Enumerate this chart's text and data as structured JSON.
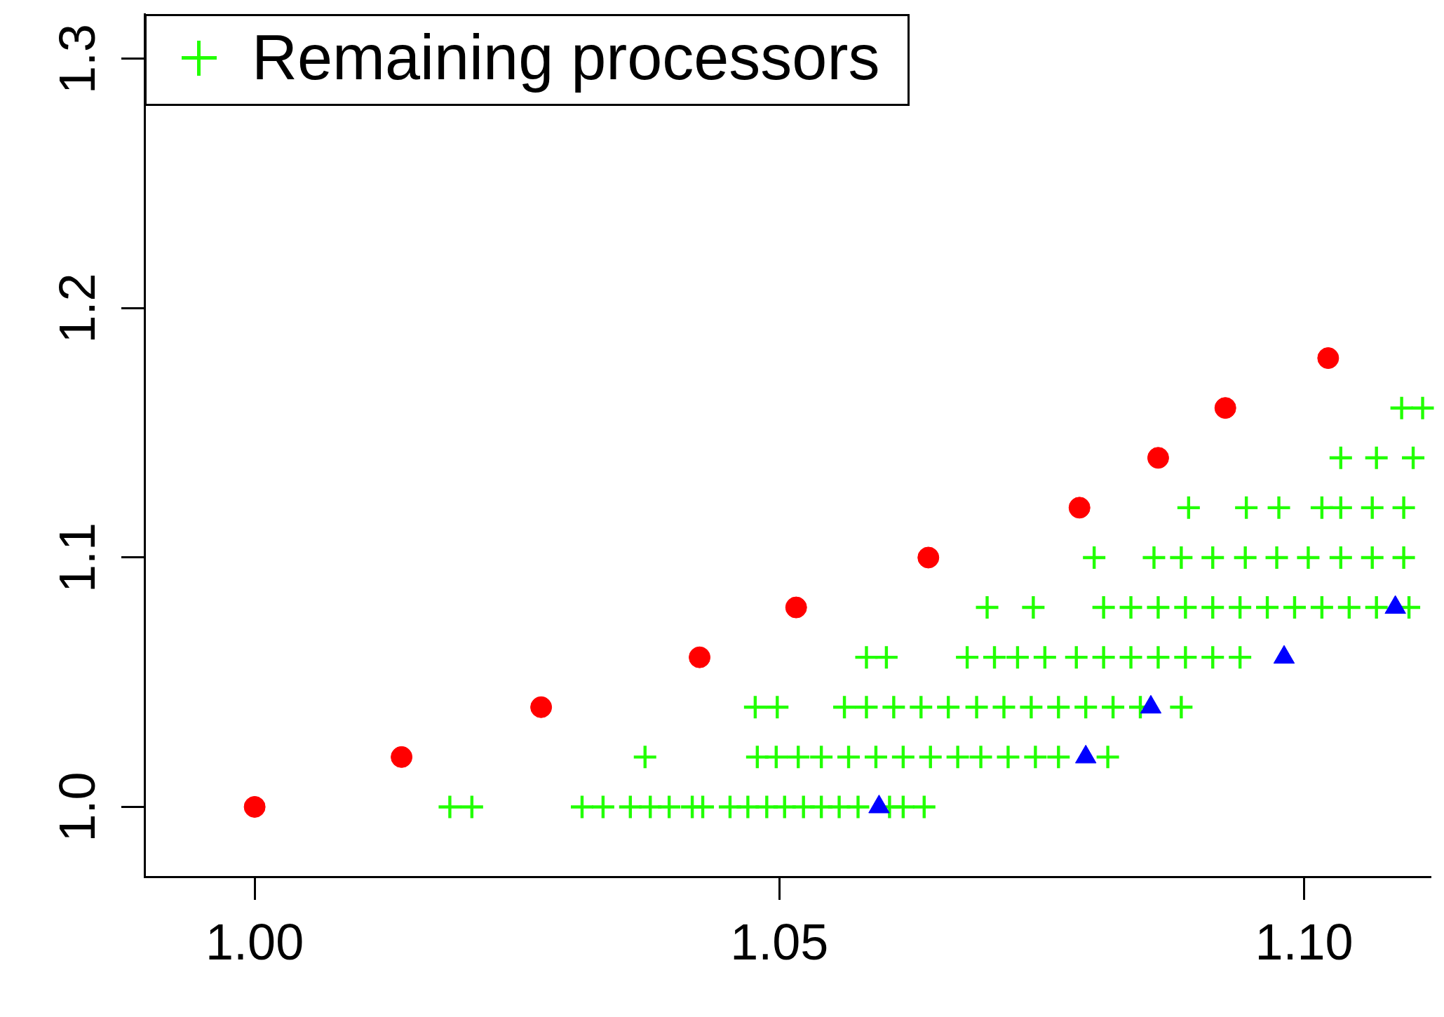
{
  "chart_data": {
    "type": "scatter",
    "xlim": [
      0.9895,
      1.112
    ],
    "ylim": [
      0.972,
      1.318
    ],
    "xticks": [
      {
        "value": 1,
        "label": "1.00"
      },
      1.05,
      {
        "value": 1.1,
        "label": "1.10"
      }
    ],
    "yticks": [
      {
        "value": 1,
        "label": "1.0"
      },
      1.1,
      1.2,
      1.3
    ],
    "legend": "top left",
    "series": [
      {
        "color": "#ff0000",
        "marker": "circle",
        "x": [
          1.0,
          1.014,
          1.0273,
          1.0424,
          1.0516,
          1.0642,
          1.0786,
          1.0861,
          1.0925,
          1.1023
        ],
        "values": [
          1.0,
          1.02,
          1.04,
          1.06,
          1.08,
          1.1,
          1.12,
          1.14,
          1.16,
          1.18
        ]
      },
      {
        "color": "#0000ff",
        "marker": "triangle",
        "x": [
          1.0595,
          1.0792,
          1.0854,
          1.0981,
          1.1087
        ],
        "values": [
          1.0,
          1.02,
          1.04,
          1.06,
          1.08
        ]
      },
      {
        "name": "Remaining processors",
        "color": "#22ff00",
        "marker": "cross",
        "x": [
          1.0186,
          1.0207,
          1.0312,
          1.0332,
          1.0358,
          1.0377,
          1.0395,
          1.0417,
          1.0427,
          1.0453,
          1.047,
          1.0488,
          1.0505,
          1.0523,
          1.054,
          1.0557,
          1.0575,
          1.0605,
          1.0618,
          1.0638,
          1.0372,
          1.0479,
          1.0497,
          1.0518,
          1.054,
          1.0566,
          1.0592,
          1.0618,
          1.0644,
          1.067,
          1.0692,
          1.0718,
          1.0744,
          1.0766,
          1.0813,
          1.0477,
          1.0498,
          1.0562,
          1.0583,
          1.0609,
          1.0635,
          1.0661,
          1.0688,
          1.0714,
          1.074,
          1.0766,
          1.0792,
          1.0818,
          1.0844,
          1.0883,
          1.0583,
          1.0602,
          1.0679,
          1.0705,
          1.0727,
          1.0753,
          1.0783,
          1.0809,
          1.0835,
          1.0861,
          1.0887,
          1.0913,
          1.0939,
          1.0698,
          1.0742,
          1.0809,
          1.0835,
          1.0861,
          1.0887,
          1.0913,
          1.0939,
          1.0965,
          1.0991,
          1.1017,
          1.1043,
          1.1069,
          1.11,
          1.08,
          1.0857,
          1.0883,
          1.0913,
          1.0944,
          1.0974,
          1.1004,
          1.1035,
          1.1065,
          1.1095,
          1.089,
          1.0945,
          1.0976,
          1.1017,
          1.1035,
          1.1065,
          1.1095,
          1.1035,
          1.1069,
          1.1104,
          1.1093,
          1.1113
        ],
        "values": [
          1.0,
          1.0,
          1.0,
          1.0,
          1.0,
          1.0,
          1.0,
          1.0,
          1.0,
          1.0,
          1.0,
          1.0,
          1.0,
          1.0,
          1.0,
          1.0,
          1.0,
          1.0,
          1.0,
          1.0,
          1.02,
          1.02,
          1.02,
          1.02,
          1.02,
          1.02,
          1.02,
          1.02,
          1.02,
          1.02,
          1.02,
          1.02,
          1.02,
          1.02,
          1.02,
          1.04,
          1.04,
          1.04,
          1.04,
          1.04,
          1.04,
          1.04,
          1.04,
          1.04,
          1.04,
          1.04,
          1.04,
          1.04,
          1.04,
          1.04,
          1.06,
          1.06,
          1.06,
          1.06,
          1.06,
          1.06,
          1.06,
          1.06,
          1.06,
          1.06,
          1.06,
          1.06,
          1.06,
          1.08,
          1.08,
          1.08,
          1.08,
          1.08,
          1.08,
          1.08,
          1.08,
          1.08,
          1.08,
          1.08,
          1.08,
          1.08,
          1.08,
          1.1,
          1.1,
          1.1,
          1.1,
          1.1,
          1.1,
          1.1,
          1.1,
          1.1,
          1.1,
          1.12,
          1.12,
          1.12,
          1.12,
          1.12,
          1.12,
          1.12,
          1.14,
          1.14,
          1.14,
          1.16,
          1.16
        ]
      }
    ]
  }
}
